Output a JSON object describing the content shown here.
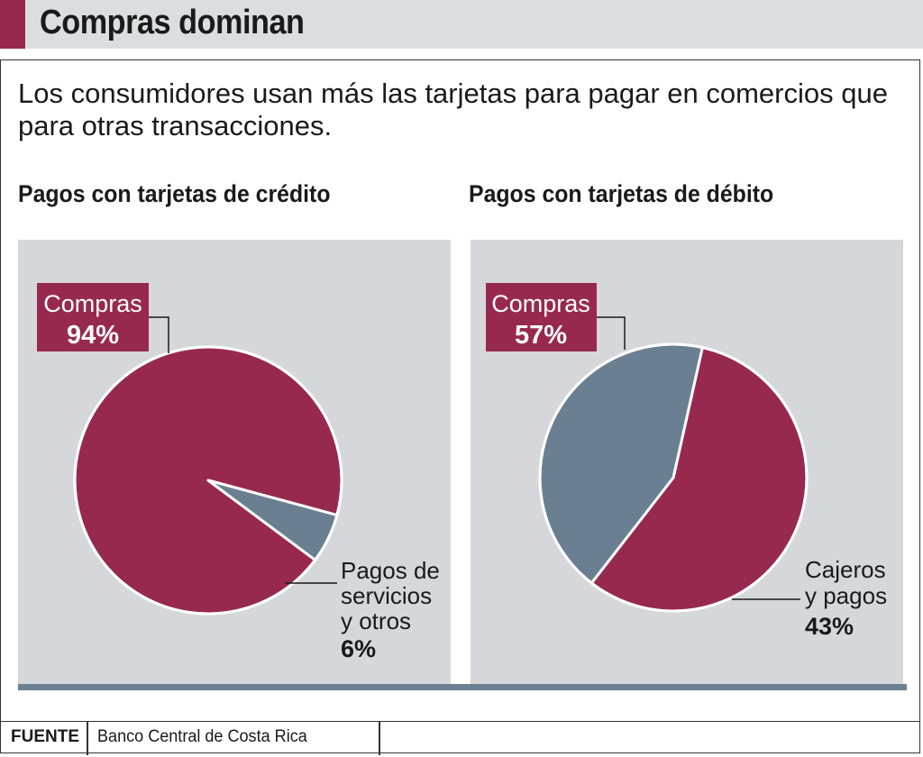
{
  "header": {
    "title": "Compras dominan"
  },
  "subtitle": "Los consumidores usan más las tarjetas para pagar en comercios que para otras transacciones.",
  "colors": {
    "accent": "#97294f",
    "secondary": "#6a7f91",
    "panel": "#d6d7db"
  },
  "chart_data": [
    {
      "type": "pie",
      "title": "Pagos con tarjetas de crédito",
      "slices": [
        {
          "label": "Compras",
          "value": 94,
          "value_label": "94%",
          "color": "#97294f"
        },
        {
          "label": "Pagos de servicios y otros",
          "label_lines": [
            "Pagos de",
            "servicios",
            "y otros"
          ],
          "value": 6,
          "value_label": "6%",
          "color": "#6a7f91"
        }
      ]
    },
    {
      "type": "pie",
      "title": "Pagos con tarjetas de débito",
      "slices": [
        {
          "label": "Compras",
          "value": 57,
          "value_label": "57%",
          "color": "#97294f"
        },
        {
          "label": "Cajeros y pagos",
          "label_lines": [
            "Cajeros",
            "y pagos"
          ],
          "value": 43,
          "value_label": "43%",
          "color": "#6a7f91"
        }
      ]
    }
  ],
  "footer": {
    "label": "FUENTE",
    "source": "Banco Central de Costa Rica"
  }
}
